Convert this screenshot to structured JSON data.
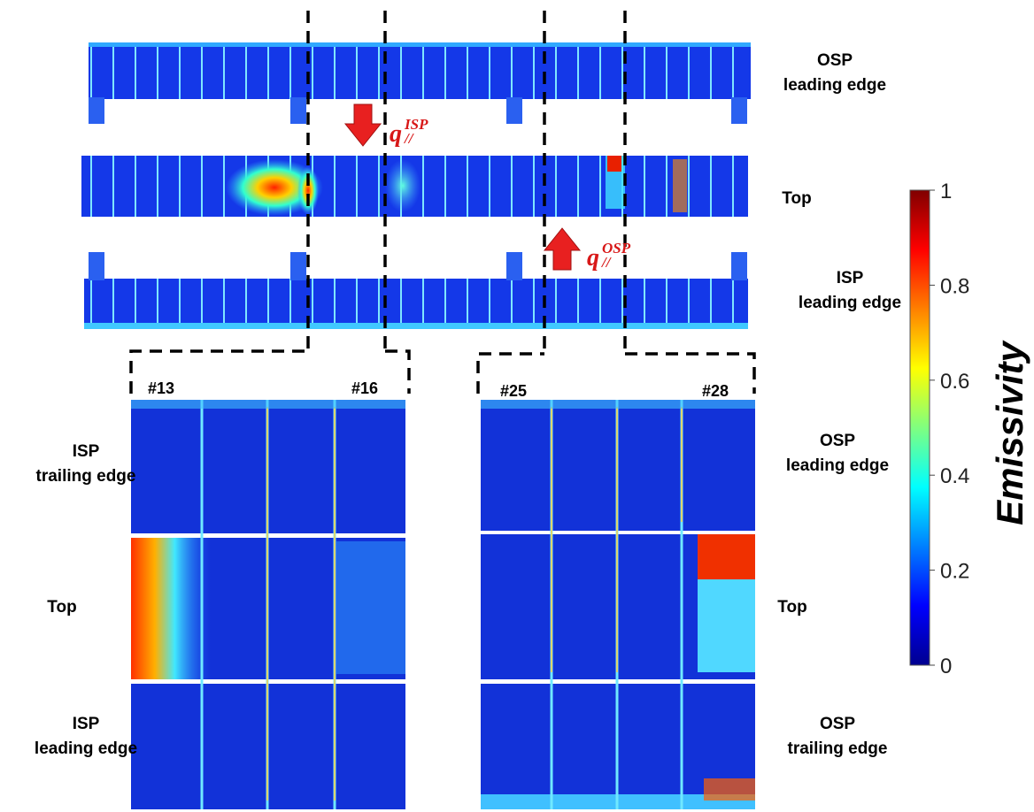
{
  "top_views": [
    {
      "lines": [
        "OSP",
        "leading edge"
      ]
    },
    {
      "lines": [
        "Top"
      ]
    },
    {
      "lines": [
        "ISP",
        "leading edge"
      ]
    }
  ],
  "heat_flux": [
    {
      "symbol": "q",
      "superscript": "ISP",
      "subscript": "//"
    },
    {
      "symbol": "q",
      "superscript": "OSP",
      "subscript": "//"
    }
  ],
  "tile_numbers": [
    "#13",
    "#16",
    "#25",
    "#28"
  ],
  "left_zoom": [
    {
      "lines": [
        "ISP",
        "trailing edge"
      ]
    },
    {
      "lines": [
        "Top"
      ]
    },
    {
      "lines": [
        "ISP",
        "leading edge"
      ]
    }
  ],
  "right_zoom": [
    {
      "lines": [
        "OSP",
        "leading edge"
      ]
    },
    {
      "lines": [
        "Top"
      ]
    },
    {
      "lines": [
        "OSP",
        "trailing edge"
      ]
    }
  ],
  "colorbar": {
    "label": "Emissivity",
    "lim": [
      0,
      1
    ],
    "ticks": [
      0,
      0.2,
      0.4,
      0.6,
      0.8,
      1
    ]
  }
}
